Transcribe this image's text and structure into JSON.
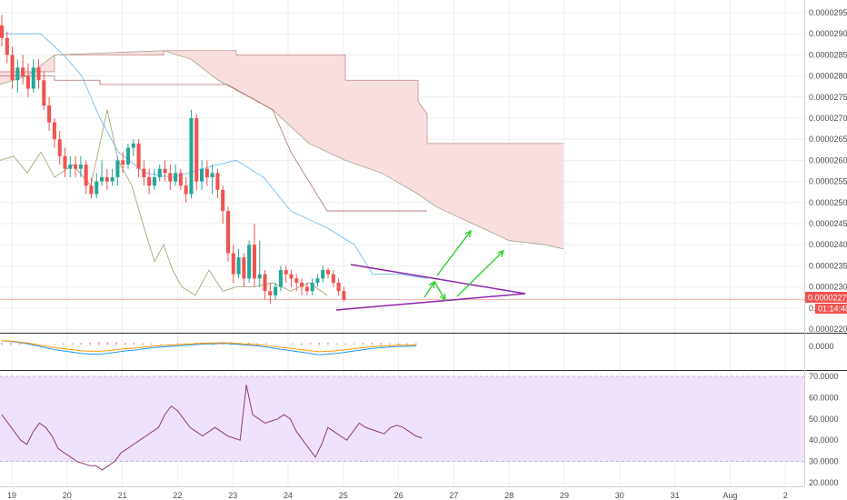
{
  "colors": {
    "up": "#26a69a",
    "down": "#ef5350",
    "cloud": "#f8d7d7",
    "cloud_line": "#c78a8a",
    "pattern": "#8e24aa",
    "arrow": "#33cc33",
    "tenkan": "#64b5f6",
    "lagging": "#9e9e6e",
    "macd_line": "#2196f3",
    "signal_line": "#ff9800",
    "rsi_line": "#8e3a7e",
    "rsi_band": "#efe2fb",
    "current_price": "#ef5350"
  },
  "price_axis": {
    "ticks": [
      "0.00002950",
      "0.00002900",
      "0.00002850",
      "0.00002800",
      "0.00002750",
      "0.00002700",
      "0.00002650",
      "0.00002600",
      "0.00002550",
      "0.00002500",
      "0.00002450",
      "0.00002400",
      "0.00002350",
      "0.00002300",
      "0.00002250",
      "0.00002200"
    ],
    "tick_values": [
      2950,
      2900,
      2850,
      2800,
      2750,
      2700,
      2650,
      2600,
      2550,
      2500,
      2450,
      2400,
      2350,
      2300,
      2250,
      2200
    ],
    "current_price_label": "0.00002270",
    "current_price_value": 2270,
    "countdown_label": "01:14:48"
  },
  "macd_axis": {
    "label": "0.0000"
  },
  "rsi_axis": {
    "ticks": [
      "70.0000",
      "60.0000",
      "50.0000",
      "40.0000",
      "30.0000",
      "20.0000"
    ],
    "tick_values": [
      70,
      60,
      50,
      40,
      30,
      20
    ]
  },
  "time_axis": {
    "labels": [
      "19",
      "20",
      "21",
      "22",
      "23",
      "24",
      "25",
      "26",
      "27",
      "28",
      "29",
      "30",
      "31",
      "Aug",
      "2"
    ]
  },
  "chart_data": {
    "type": "candlestick",
    "ylim": [
      2190,
      2960
    ],
    "candles": [
      [
        2920,
        2890,
        2945,
        2870
      ],
      [
        2890,
        2850,
        2905,
        2830
      ],
      [
        2850,
        2790,
        2870,
        2770
      ],
      [
        2790,
        2820,
        2840,
        2760
      ],
      [
        2820,
        2800,
        2850,
        2780
      ],
      [
        2800,
        2770,
        2830,
        2750
      ],
      [
        2770,
        2820,
        2840,
        2760
      ],
      [
        2820,
        2790,
        2840,
        2770
      ],
      [
        2790,
        2730,
        2810,
        2720
      ],
      [
        2730,
        2690,
        2750,
        2670
      ],
      [
        2690,
        2650,
        2700,
        2630
      ],
      [
        2650,
        2610,
        2670,
        2590
      ],
      [
        2610,
        2580,
        2630,
        2560
      ],
      [
        2580,
        2590,
        2610,
        2560
      ],
      [
        2590,
        2580,
        2610,
        2560
      ],
      [
        2580,
        2590,
        2610,
        2560
      ],
      [
        2590,
        2540,
        2600,
        2520
      ],
      [
        2540,
        2520,
        2560,
        2510
      ],
      [
        2520,
        2550,
        2570,
        2510
      ],
      [
        2550,
        2560,
        2600,
        2540
      ],
      [
        2560,
        2550,
        2580,
        2530
      ],
      [
        2550,
        2560,
        2580,
        2540
      ],
      [
        2560,
        2600,
        2610,
        2540
      ],
      [
        2600,
        2590,
        2620,
        2570
      ],
      [
        2590,
        2630,
        2640,
        2580
      ],
      [
        2630,
        2640,
        2650,
        2610
      ],
      [
        2640,
        2580,
        2650,
        2560
      ],
      [
        2580,
        2560,
        2600,
        2540
      ],
      [
        2560,
        2540,
        2580,
        2520
      ],
      [
        2540,
        2560,
        2580,
        2530
      ],
      [
        2560,
        2580,
        2590,
        2550
      ],
      [
        2580,
        2570,
        2600,
        2550
      ],
      [
        2570,
        2550,
        2590,
        2530
      ],
      [
        2550,
        2570,
        2590,
        2540
      ],
      [
        2570,
        2540,
        2580,
        2530
      ],
      [
        2540,
        2520,
        2560,
        2500
      ],
      [
        2520,
        2700,
        2720,
        2510
      ],
      [
        2700,
        2550,
        2710,
        2530
      ],
      [
        2550,
        2580,
        2600,
        2530
      ],
      [
        2580,
        2560,
        2600,
        2540
      ],
      [
        2560,
        2570,
        2590,
        2520
      ],
      [
        2570,
        2530,
        2580,
        2510
      ],
      [
        2530,
        2480,
        2540,
        2450
      ],
      [
        2480,
        2380,
        2490,
        2360
      ],
      [
        2380,
        2330,
        2400,
        2310
      ],
      [
        2330,
        2370,
        2390,
        2320
      ],
      [
        2370,
        2320,
        2380,
        2300
      ],
      [
        2320,
        2400,
        2410,
        2310
      ],
      [
        2400,
        2320,
        2450,
        2300
      ],
      [
        2320,
        2330,
        2410,
        2300
      ],
      [
        2330,
        2290,
        2340,
        2270
      ],
      [
        2290,
        2280,
        2310,
        2260
      ],
      [
        2280,
        2300,
        2310,
        2270
      ],
      [
        2300,
        2340,
        2350,
        2290
      ],
      [
        2340,
        2330,
        2350,
        2310
      ],
      [
        2330,
        2320,
        2340,
        2300
      ],
      [
        2320,
        2310,
        2330,
        2290
      ],
      [
        2310,
        2300,
        2320,
        2280
      ],
      [
        2300,
        2290,
        2310,
        2280
      ],
      [
        2290,
        2310,
        2320,
        2280
      ],
      [
        2310,
        2320,
        2330,
        2300
      ],
      [
        2320,
        2340,
        2350,
        2310
      ],
      [
        2340,
        2330,
        2345,
        2320
      ],
      [
        2330,
        2310,
        2340,
        2300
      ],
      [
        2310,
        2290,
        2320,
        2280
      ],
      [
        2290,
        2270,
        2300,
        2265
      ]
    ],
    "rsi_values": [
      52,
      48,
      44,
      40,
      38,
      44,
      48,
      46,
      42,
      36,
      34,
      32,
      30,
      29,
      28,
      28,
      26,
      28,
      30,
      34,
      36,
      38,
      40,
      42,
      44,
      46,
      52,
      56,
      54,
      50,
      46,
      44,
      42,
      44,
      46,
      44,
      42,
      41,
      40,
      66,
      52,
      50,
      48,
      49,
      50,
      52,
      50,
      44,
      40,
      36,
      32,
      38,
      46,
      44,
      42,
      40,
      44,
      48,
      46,
      45,
      44,
      43,
      46,
      47,
      46,
      44,
      42,
      41
    ],
    "macd_values": [
      0.6,
      0.5,
      0.3,
      0.1,
      -0.2,
      -0.5,
      -0.8,
      -1,
      -1.2,
      -1.4,
      -1.5,
      -1.5,
      -1.4,
      -1.2,
      -1,
      -0.9,
      -0.7,
      -0.5,
      -0.4,
      -0.3,
      -0.2,
      -0.1,
      0,
      0.1,
      0.1,
      0.2,
      0.1,
      0,
      -0.1,
      -0.2,
      -0.4,
      -0.6,
      -0.8,
      -1,
      -1.2,
      -1.4,
      -1.6,
      -1.5,
      -1.4,
      -1.2,
      -1,
      -0.8,
      -0.6,
      -0.5,
      -0.4,
      -0.3,
      -0.3,
      -0.2
    ],
    "macd_hist": [
      0.3,
      0.3,
      0.2,
      0.2,
      0.1,
      0.1,
      0.1,
      0.2,
      0.2,
      0.3,
      0.3,
      0.4,
      0.4,
      0.4,
      0.3,
      0.3,
      0.2,
      0.2,
      0.1,
      0.1,
      0.2,
      0.2,
      0.3,
      0.3,
      0.3,
      0.4,
      0.4,
      0.3,
      0.3,
      0.2,
      0.2,
      0.1,
      0.1,
      0.2,
      0.2,
      0.3,
      0.3,
      0.3,
      0.2,
      0.2,
      0.2,
      0.3,
      0.3,
      0.3,
      0.2,
      0.2,
      0.2,
      0.2
    ]
  }
}
